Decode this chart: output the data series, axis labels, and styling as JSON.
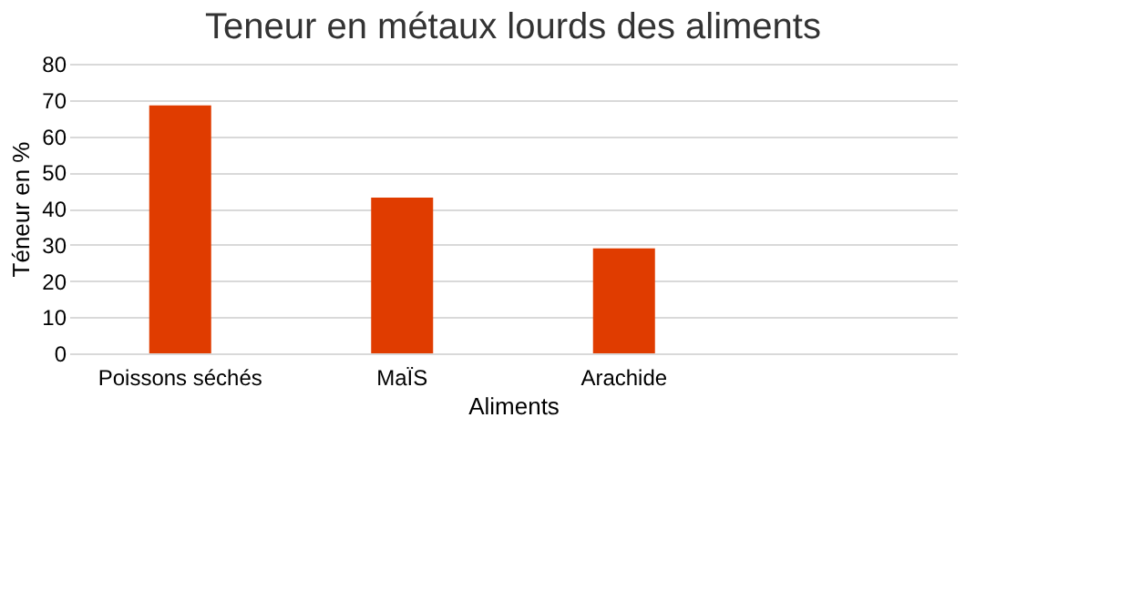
{
  "chart_data": {
    "type": "bar",
    "title": "Teneur en métaux lourds des aliments",
    "xlabel": "Aliments",
    "ylabel": "Téneur en %",
    "categories": [
      "Poissons séchés",
      "MaÏS",
      "Arachide",
      null
    ],
    "values": [
      68.5,
      43,
      29,
      null
    ],
    "color": "#e03c00",
    "ylim": [
      0,
      80
    ],
    "yticks": [
      0,
      10,
      20,
      30,
      40,
      50,
      60,
      70,
      80
    ],
    "grid": "y"
  }
}
